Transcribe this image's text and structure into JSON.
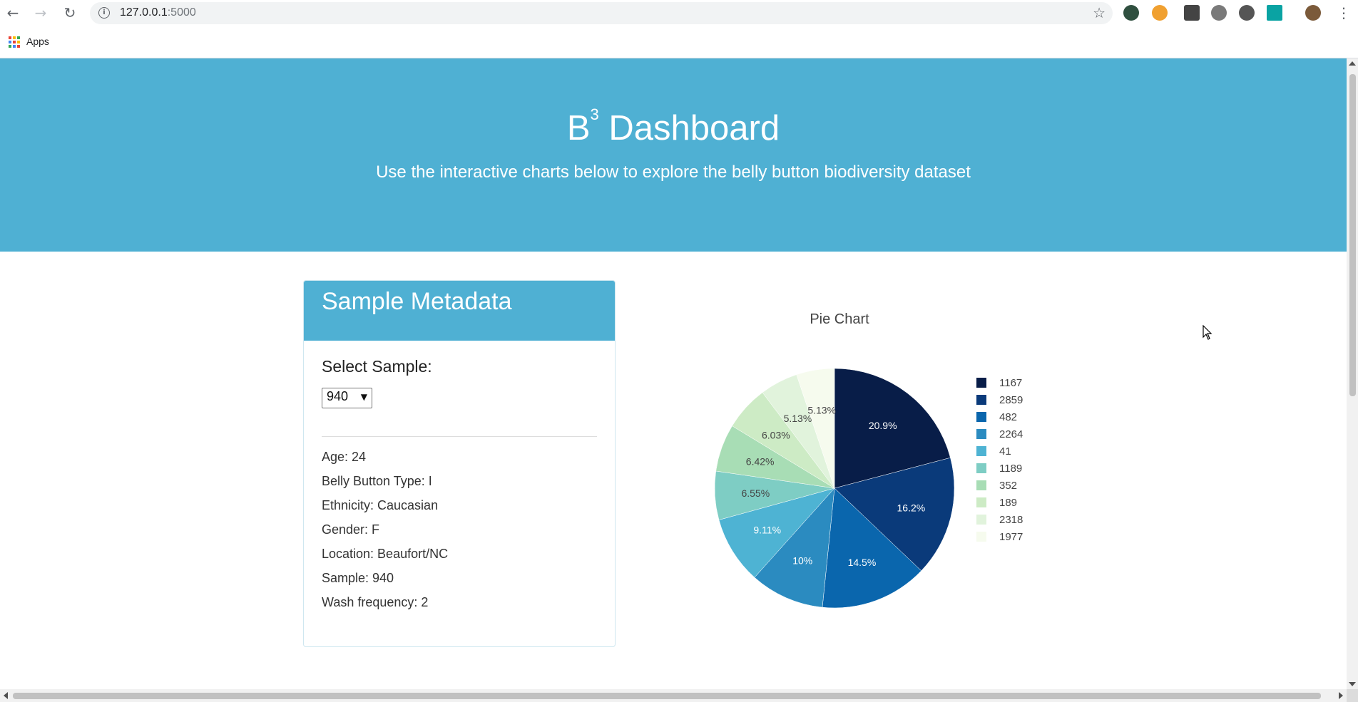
{
  "browser": {
    "url_host": "127.0.0.1",
    "url_port": ":5000",
    "bookmarks_apps_label": "Apps"
  },
  "header": {
    "title_prefix": "B",
    "title_sup": "3",
    "title_suffix": " Dashboard",
    "subtitle": "Use the interactive charts below to explore the belly button biodiversity dataset"
  },
  "metadata_panel": {
    "title": "Sample Metadata",
    "select_label": "Select Sample:",
    "selected_sample": "940",
    "lines": [
      "Age: 24",
      "Belly Button Type: I",
      "Ethnicity: Caucasian",
      "Gender: F",
      "Location: Beaufort/NC",
      "Sample: 940",
      "Wash frequency: 2"
    ]
  },
  "colors": {
    "header_bg": "#4fb0d3",
    "pie": [
      "#081d48",
      "#0a3a7a",
      "#0a66ad",
      "#2b8bc0",
      "#4eb3d3",
      "#7ecdc4",
      "#a8ddb5",
      "#cdebc5",
      "#e1f3dc",
      "#f6fbee"
    ]
  },
  "chart_data": {
    "type": "pie",
    "title": "Pie Chart",
    "labels": [
      "1167",
      "2859",
      "482",
      "2264",
      "41",
      "1189",
      "352",
      "189",
      "2318",
      "1977"
    ],
    "values": [
      20.9,
      16.2,
      14.5,
      10.0,
      9.11,
      6.55,
      6.42,
      6.03,
      5.13,
      5.13
    ],
    "value_labels": [
      "20.9%",
      "16.2%",
      "14.5%",
      "10%",
      "9.11%",
      "6.55%",
      "6.42%",
      "6.03%",
      "5.13%",
      "5.13%"
    ],
    "legend_position": "right"
  }
}
